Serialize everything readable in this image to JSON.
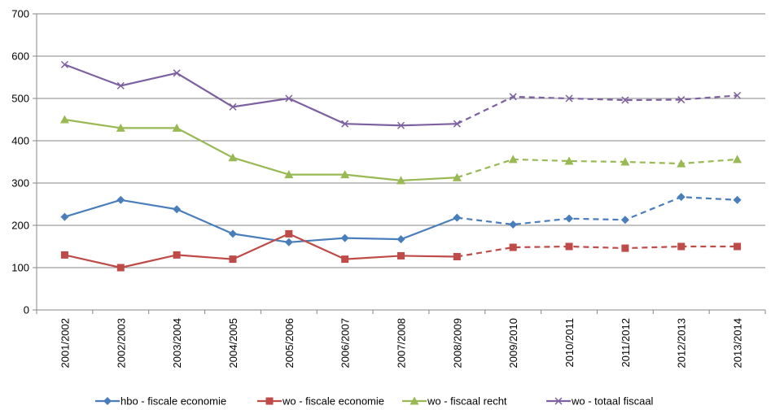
{
  "chart_data": {
    "type": "line",
    "categories": [
      "2001/2002",
      "2002/2003",
      "2003/2004",
      "2004/2005",
      "2005/2006",
      "2006/2007",
      "2007/2008",
      "2008/2009",
      "2009/2010",
      "2010/2011",
      "2011/2012",
      "2012/2013",
      "2013/2014"
    ],
    "ylim": [
      0,
      700
    ],
    "yticks": [
      0,
      100,
      200,
      300,
      400,
      500,
      600,
      700
    ],
    "grid": true,
    "legend_position": "bottom",
    "dashed_from_category": "2008/2009",
    "series": [
      {
        "name": "hbo - fiscale economie",
        "color": "#4A7EBB",
        "marker": "diamond",
        "values": [
          220,
          260,
          238,
          180,
          160,
          170,
          167,
          218,
          202,
          216,
          213,
          267,
          260
        ]
      },
      {
        "name": "wo - fiscale economie",
        "color": "#BE4B48",
        "marker": "square",
        "values": [
          130,
          100,
          130,
          120,
          180,
          120,
          128,
          126,
          148,
          150,
          146,
          150,
          150
        ]
      },
      {
        "name": "wo - fiscaal recht",
        "color": "#98B954",
        "marker": "triangle",
        "values": [
          450,
          430,
          430,
          360,
          320,
          320,
          306,
          313,
          356,
          352,
          350,
          346,
          356
        ]
      },
      {
        "name": "wo - totaal fiscaal",
        "color": "#7D60A0",
        "marker": "x",
        "values": [
          580,
          530,
          560,
          480,
          500,
          440,
          436,
          440,
          504,
          500,
          496,
          497,
          507
        ]
      }
    ]
  }
}
